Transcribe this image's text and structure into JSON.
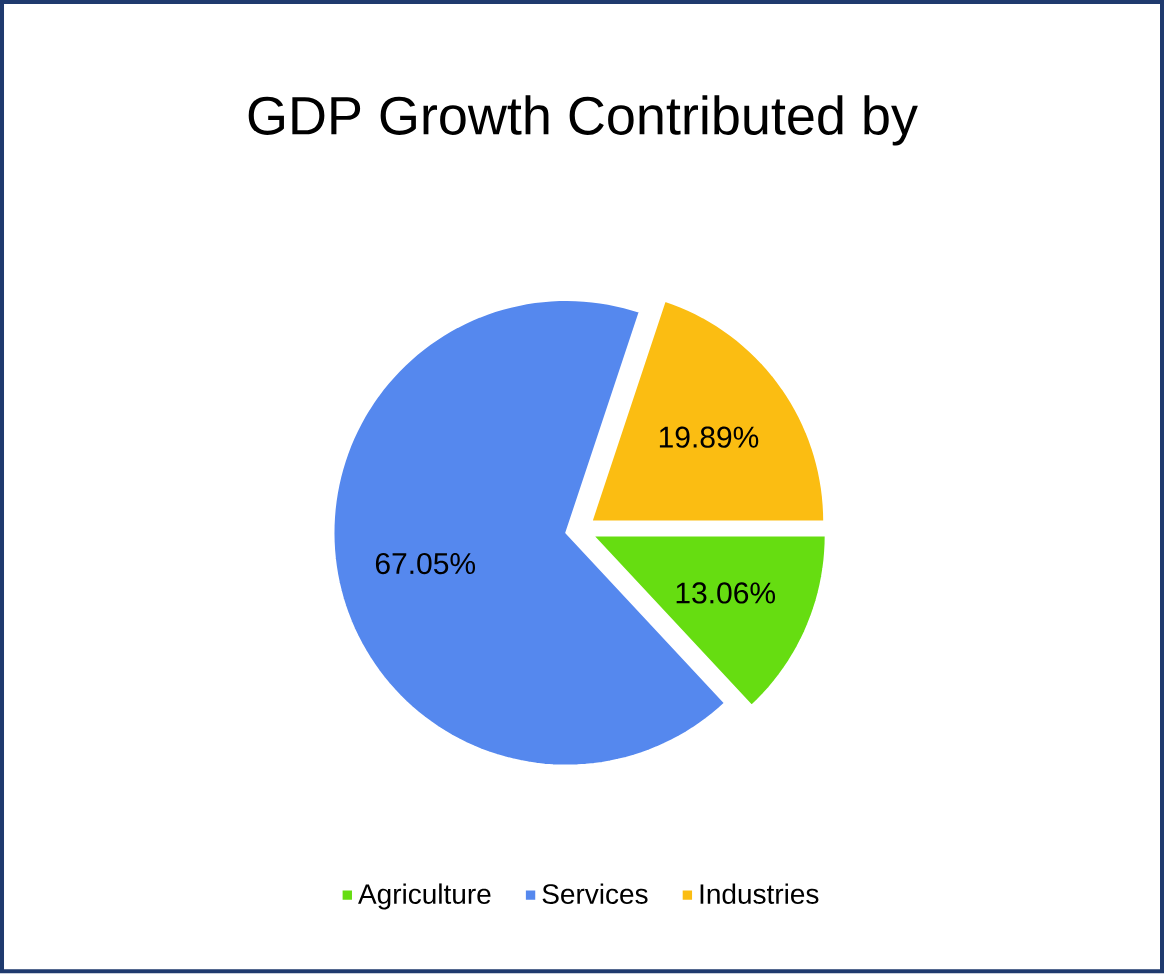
{
  "chart_data": {
    "type": "pie",
    "title": "GDP Growth Contributed by",
    "categories": [
      "Agriculture",
      "Services",
      "Industries"
    ],
    "values": [
      13.06,
      67.05,
      19.89
    ],
    "colors": [
      "#66dd11",
      "#5588ee",
      "#fbbd12"
    ],
    "value_labels": [
      "13.06%",
      "67.05%",
      "19.89%"
    ],
    "legend": "bottom"
  }
}
